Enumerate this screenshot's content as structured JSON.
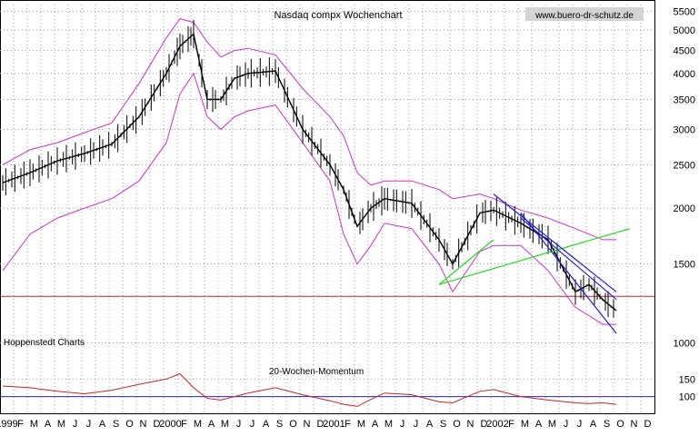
{
  "colors": {
    "background": "#ffffff",
    "price": "#000000",
    "bands": "#cc33cc",
    "trend_green": "#22dd22",
    "trend_blue": "#2222cc",
    "reference_red": "#cc2222",
    "momentum": "#cc2222",
    "momentum_ref": "#2222cc",
    "grid": "#9a9a9a"
  },
  "header": {
    "title": "Nasdaq compx Wochenchart",
    "watermark": "www.buero-dr-schutz.de"
  },
  "left_labels": {
    "source": "Hoppenstedt Charts"
  },
  "chart_data": [
    {
      "type": "line",
      "title": "Nasdaq compx Wochenchart",
      "y_scale": "log",
      "ylim": [
        900,
        5700
      ],
      "grid": true,
      "y_ticks": [
        1000,
        1500,
        2000,
        2500,
        3000,
        3500,
        4000,
        4500,
        5000,
        5500
      ],
      "x_tick_labels": [
        "1999",
        "F",
        "M",
        "A",
        "M",
        "J",
        "J",
        "A",
        "S",
        "O",
        "N",
        "D",
        "2000",
        "F",
        "M",
        "A",
        "M",
        "J",
        "J",
        "A",
        "S",
        "O",
        "N",
        "D",
        "2001",
        "F",
        "M",
        "A",
        "M",
        "J",
        "J",
        "A",
        "S",
        "O",
        "N",
        "D",
        "2002",
        "F",
        "M",
        "A",
        "M",
        "J",
        "J",
        "A",
        "S",
        "O",
        "N",
        "D"
      ],
      "x": [
        "1999-01",
        "1999-03",
        "1999-05",
        "1999-07",
        "1999-09",
        "1999-11",
        "2000-01",
        "2000-02",
        "2000-03",
        "2000-04",
        "2000-05",
        "2000-06",
        "2000-07",
        "2000-09",
        "2000-11",
        "2001-01",
        "2001-02",
        "2001-03",
        "2001-04",
        "2001-05",
        "2001-07",
        "2001-09",
        "2001-10",
        "2001-12",
        "2002-01",
        "2002-03",
        "2002-05",
        "2002-07",
        "2002-08",
        "2002-09",
        "2002-10"
      ],
      "series": [
        {
          "values": [
            2280,
            2400,
            2550,
            2650,
            2780,
            3200,
            4000,
            4600,
            4900,
            3500,
            3500,
            3900,
            4000,
            4050,
            3000,
            2500,
            2200,
            1820,
            2000,
            2100,
            2050,
            1700,
            1500,
            1950,
            1980,
            1850,
            1700,
            1300,
            1350,
            1250,
            1180
          ]
        },
        {
          "values": [
            2500,
            2700,
            2800,
            2950,
            3100,
            3800,
            4800,
            5300,
            5200,
            4700,
            4350,
            4500,
            4550,
            4400,
            3700,
            3200,
            2900,
            2400,
            2250,
            2300,
            2300,
            2200,
            2100,
            2150,
            2100,
            1980,
            1900,
            1800,
            1750,
            1700,
            1700
          ]
        },
        {
          "values": [
            1450,
            1750,
            1900,
            2000,
            2100,
            2300,
            2800,
            3600,
            4000,
            3200,
            3000,
            3200,
            3300,
            3400,
            2800,
            2300,
            1750,
            1500,
            1650,
            1850,
            1800,
            1500,
            1300,
            1600,
            1650,
            1650,
            1450,
            1200,
            1150,
            1100,
            1100
          ]
        }
      ],
      "trendlines": [
        {
          "x": [
            "2001-09",
            "2002-11"
          ],
          "y": [
            1350,
            1800
          ]
        },
        {
          "x": [
            "2001-09",
            "2002-01"
          ],
          "y": [
            1350,
            1700
          ]
        },
        {
          "x": [
            "2002-01",
            "2002-10"
          ],
          "y": [
            2150,
            1300
          ]
        },
        {
          "x": [
            "2002-03",
            "2002-10"
          ],
          "y": [
            1950,
            1050
          ]
        },
        {
          "x": [
            "2002-03",
            "2002-10"
          ],
          "y": [
            1900,
            1250
          ]
        }
      ],
      "reference_line": 1270
    },
    {
      "type": "line",
      "title": "20-Wochen-Momentum",
      "ylim": [
        60,
        200
      ],
      "y_ticks": [
        100,
        150
      ],
      "reference": 100,
      "x": [
        "1999-01",
        "1999-03",
        "1999-05",
        "1999-07",
        "1999-09",
        "1999-11",
        "2000-01",
        "2000-02",
        "2000-03",
        "2000-04",
        "2000-05",
        "2000-06",
        "2000-07",
        "2000-09",
        "2000-11",
        "2001-01",
        "2001-02",
        "2001-03",
        "2001-04",
        "2001-05",
        "2001-07",
        "2001-09",
        "2001-10",
        "2001-12",
        "2002-01",
        "2002-03",
        "2002-05",
        "2002-07",
        "2002-08",
        "2002-09",
        "2002-10"
      ],
      "values": [
        130,
        125,
        115,
        108,
        118,
        135,
        150,
        165,
        125,
        95,
        90,
        100,
        110,
        125,
        105,
        88,
        78,
        72,
        92,
        110,
        105,
        85,
        82,
        115,
        120,
        100,
        90,
        82,
        80,
        82,
        78
      ]
    }
  ]
}
